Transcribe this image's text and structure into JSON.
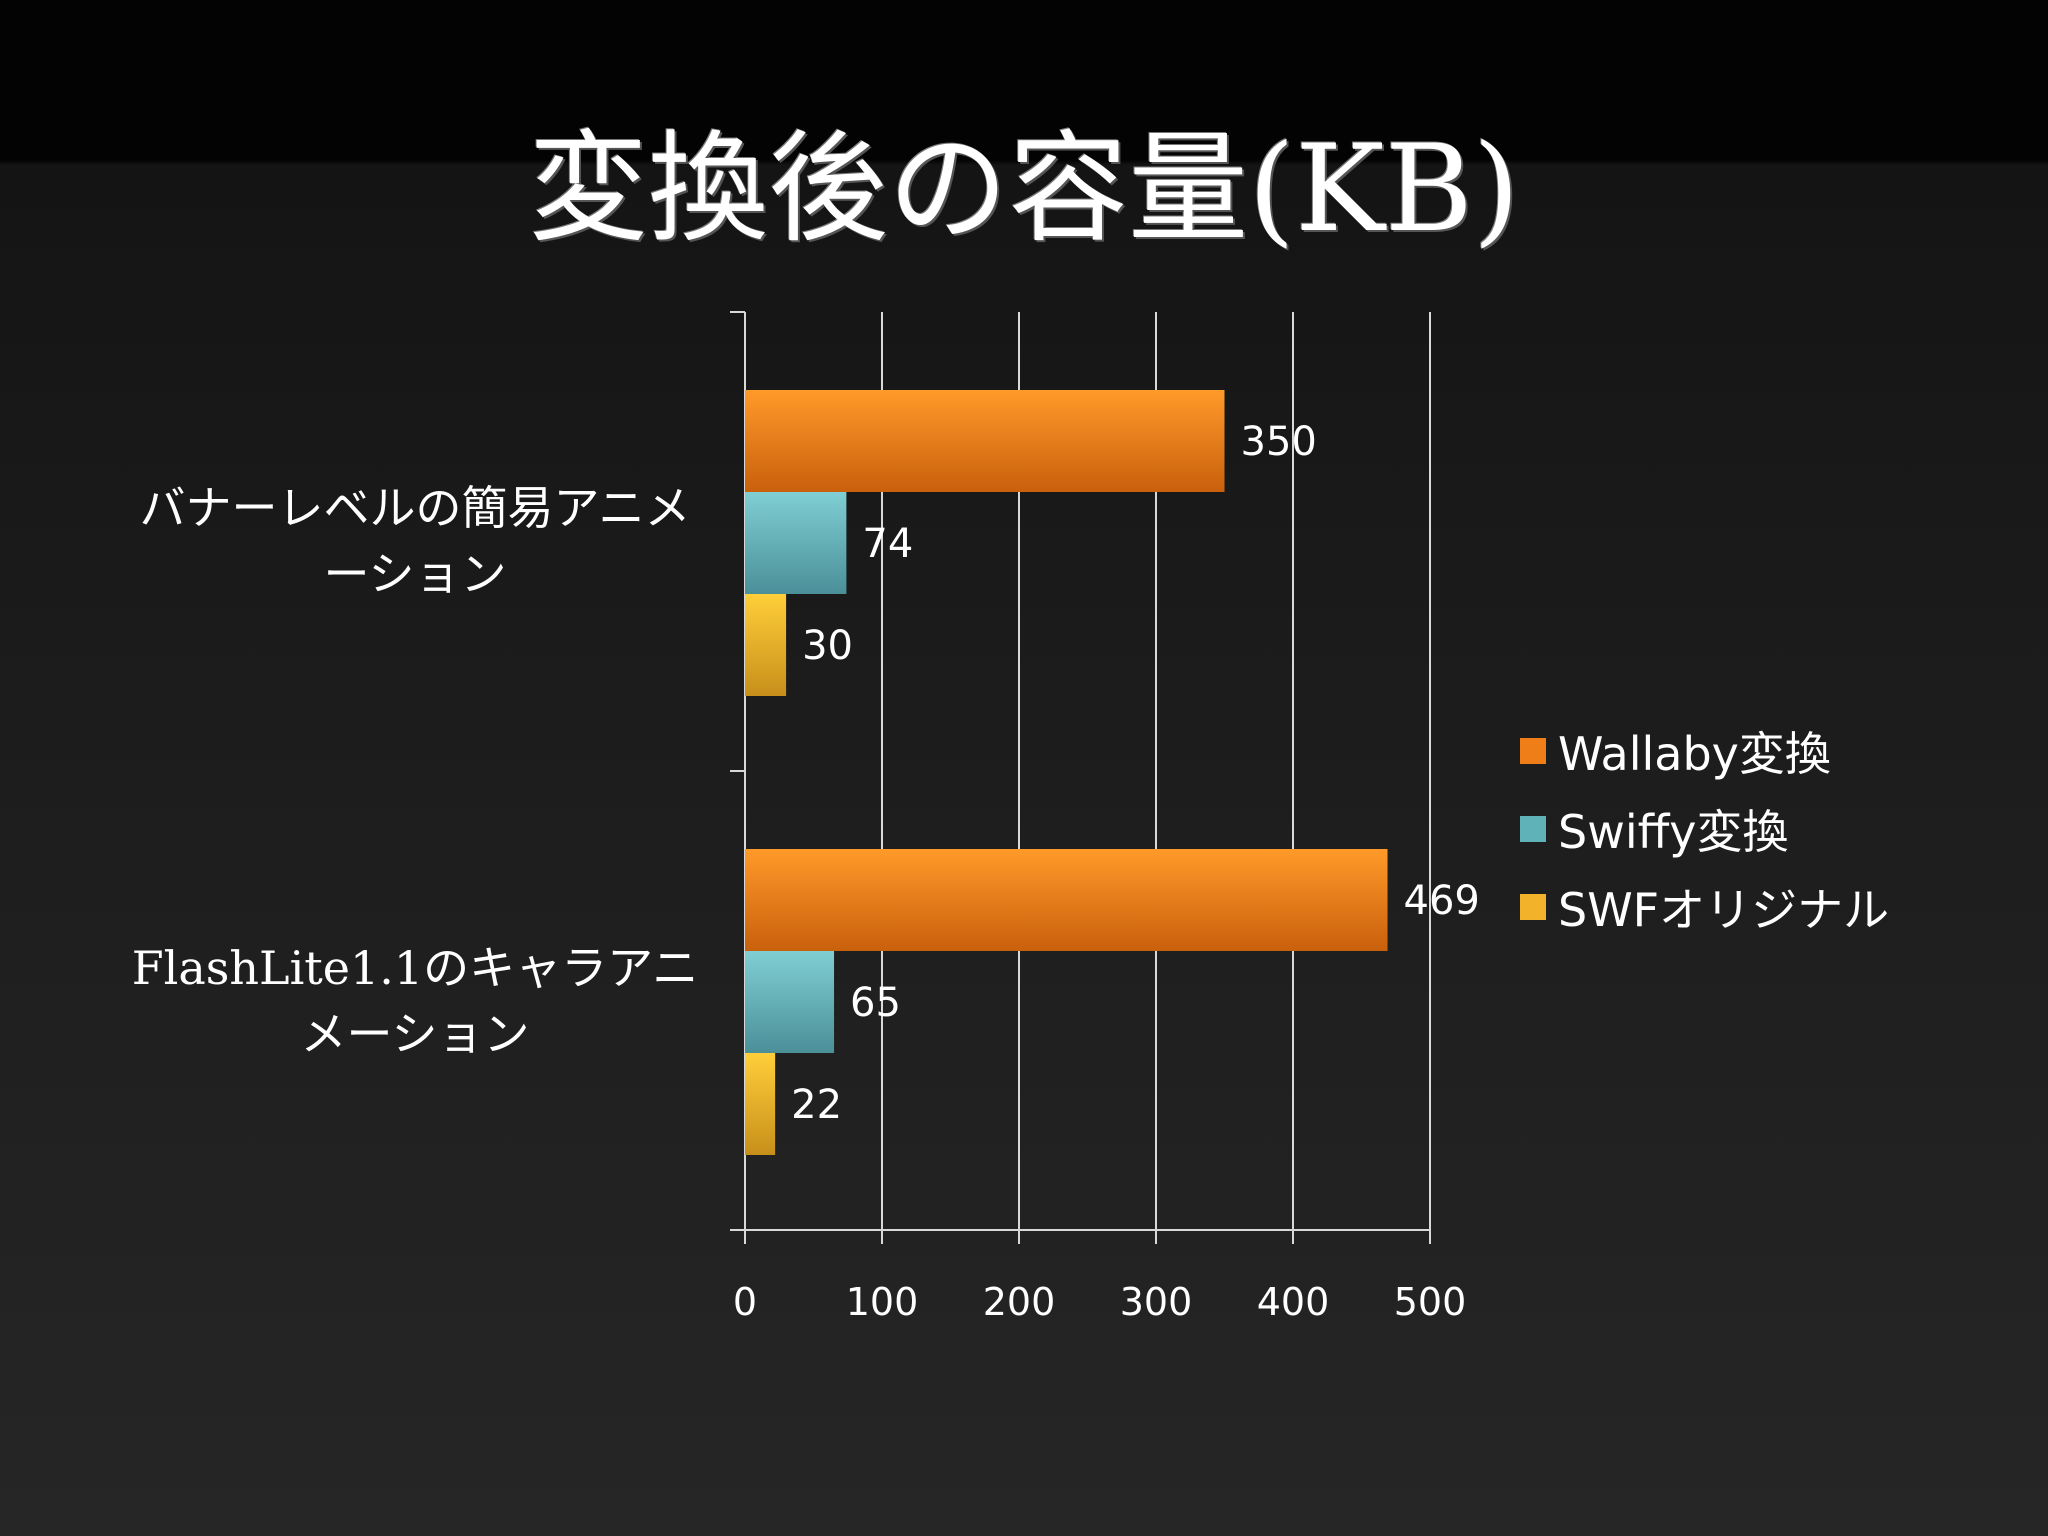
{
  "chart_data": {
    "type": "bar",
    "orientation": "horizontal",
    "title": "変換後の容量(KB)",
    "categories": [
      "バナーレベルの簡易アニメーション",
      "FlashLite1.1のキャラアニメーション"
    ],
    "series": [
      {
        "name": "Wallaby変換",
        "values": [
          350,
          469
        ],
        "color": "#f07e18"
      },
      {
        "name": "Swiffy変換",
        "values": [
          74,
          65
        ],
        "color": "#5fb2b8"
      },
      {
        "name": "SWFオリジナル",
        "values": [
          30,
          22
        ],
        "color": "#f2b32a"
      }
    ],
    "xlim": [
      0,
      500
    ],
    "xticks": [
      "0",
      "100",
      "200",
      "300",
      "400",
      "500"
    ],
    "grid": true,
    "legend": "right",
    "data_labels": true
  }
}
